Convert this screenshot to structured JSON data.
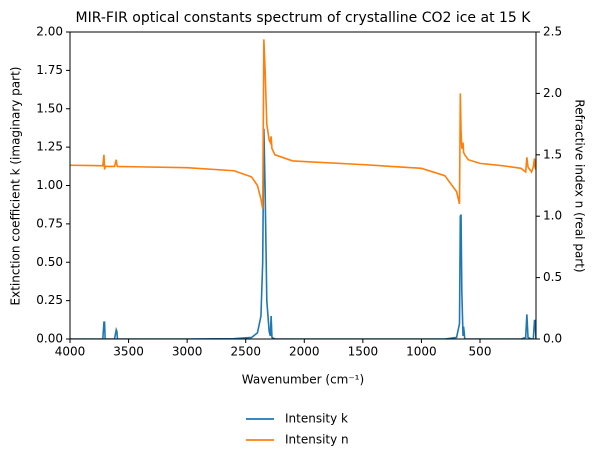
{
  "chart_data": {
    "type": "line",
    "title": "MIR-FIR optical constants spectrum of crystalline CO2 ice at 15 K",
    "x_label": "Wavenumber (cm⁻¹)",
    "y_label": "Extinction coefficient k (imaginary part)",
    "y2_label": "Refractive index n (real part)",
    "x": [
      4000,
      3800,
      3720,
      3710,
      3705,
      3700,
      3620,
      3605,
      3600,
      3595,
      3000,
      2600,
      2450,
      2400,
      2370,
      2355,
      2345,
      2335,
      2320,
      2300,
      2290,
      2283,
      2276,
      2250,
      2100,
      1500,
      1000,
      800,
      700,
      675,
      668,
      662,
      655,
      645,
      640,
      630,
      600,
      500,
      300,
      150,
      110,
      100,
      90,
      60,
      45,
      35,
      30,
      22
    ],
    "series": [
      {
        "name": "Intensity k",
        "color": "#1f77b4",
        "axis": "y",
        "values": [
          0,
          0,
          0,
          0.11,
          0.11,
          0,
          0,
          0.06,
          0.05,
          0,
          0,
          0.002,
          0.01,
          0.04,
          0.15,
          0.5,
          1.37,
          1.0,
          0.25,
          0.05,
          0.02,
          0.15,
          0.01,
          0,
          0,
          0,
          0,
          0,
          0.01,
          0.1,
          0.8,
          0.81,
          0.3,
          0.02,
          0.08,
          0,
          0,
          0,
          0,
          0,
          0.01,
          0.16,
          0.01,
          0,
          0,
          0.12,
          0.12,
          0
        ]
      },
      {
        "name": "Intensity n",
        "color": "#ff7f0e",
        "axis": "y2",
        "values": [
          1.415,
          1.412,
          1.41,
          1.5,
          1.38,
          1.405,
          1.405,
          1.46,
          1.42,
          1.405,
          1.395,
          1.37,
          1.32,
          1.25,
          1.14,
          1.06,
          2.44,
          2.2,
          1.75,
          1.62,
          1.6,
          1.65,
          1.55,
          1.5,
          1.45,
          1.42,
          1.39,
          1.33,
          1.2,
          1.1,
          2.0,
          1.7,
          1.55,
          1.6,
          1.52,
          1.5,
          1.46,
          1.43,
          1.41,
          1.39,
          1.36,
          1.48,
          1.4,
          1.36,
          1.4,
          1.47,
          1.4,
          1.38
        ]
      }
    ],
    "xlim": [
      4000,
      22
    ],
    "xticks": [
      4000,
      3500,
      3000,
      2500,
      2000,
      1500,
      1000,
      500
    ],
    "ylim": [
      0,
      2
    ],
    "yticks": [
      {
        "value": 0,
        "label": "0.00"
      },
      0.25,
      {
        "value": 0.5,
        "label": "0.50"
      },
      0.75,
      {
        "value": 1,
        "label": "1.00"
      },
      1.25,
      {
        "value": 1.5,
        "label": "1.50"
      },
      1.75,
      {
        "value": 2,
        "label": "2.00"
      }
    ],
    "y2lim": [
      0,
      2.5
    ],
    "y2ticks": [
      {
        "value": 0,
        "label": "0.0"
      },
      0.5,
      {
        "value": 1,
        "label": "1.0"
      },
      1.5,
      {
        "value": 2,
        "label": "2.0"
      },
      2.5
    ],
    "grid": false,
    "legend": "bottom"
  }
}
